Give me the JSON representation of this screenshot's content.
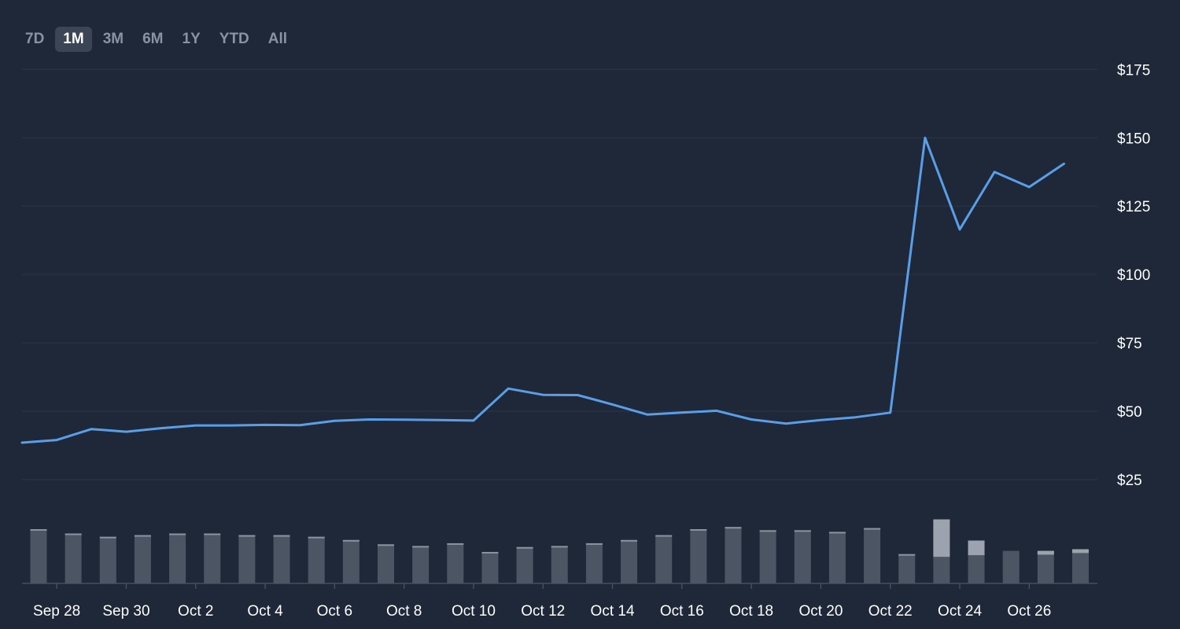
{
  "range_selector": {
    "options": [
      "7D",
      "1M",
      "3M",
      "6M",
      "1Y",
      "YTD",
      "All"
    ],
    "selected": "1M"
  },
  "colors": {
    "background": "#1e2838",
    "line": "#5b9ee8",
    "volume_bar": "#4b5563",
    "volume_bar_cap": "#9ca3af",
    "grid": "#2c3646",
    "axis": "#4a5566"
  },
  "chart_data": {
    "type": "line",
    "x": [
      "Sep 27",
      "Sep 28",
      "Sep 29",
      "Sep 30",
      "Oct 1",
      "Oct 2",
      "Oct 3",
      "Oct 4",
      "Oct 5",
      "Oct 6",
      "Oct 7",
      "Oct 8",
      "Oct 9",
      "Oct 10",
      "Oct 11",
      "Oct 12",
      "Oct 13",
      "Oct 14",
      "Oct 15",
      "Oct 16",
      "Oct 17",
      "Oct 18",
      "Oct 19",
      "Oct 20",
      "Oct 21",
      "Oct 22",
      "Oct 23",
      "Oct 24",
      "Oct 25",
      "Oct 26",
      "Oct 27"
    ],
    "series": [
      {
        "values": [
          38.5,
          39.5,
          43.5,
          42.5,
          43.8,
          44.8,
          44.8,
          45.0,
          44.9,
          46.5,
          47.0,
          46.9,
          46.8,
          46.6,
          58.3,
          56.0,
          55.9,
          52.5,
          48.8,
          49.5,
          50.2,
          47.0,
          45.5,
          46.8,
          47.8,
          49.5,
          150.0,
          116.5,
          137.5,
          132.0,
          140.5
        ]
      }
    ],
    "volume": [
      10,
      9.2,
      8.6,
      8.9,
      9.2,
      9.2,
      8.9,
      8.9,
      8.6,
      8.0,
      7.2,
      6.9,
      7.4,
      5.8,
      6.7,
      6.9,
      7.4,
      8.0,
      8.9,
      10.0,
      10.4,
      9.8,
      9.8,
      9.5,
      10.2,
      5.4,
      11.8,
      7.9,
      6.0,
      6.0,
      6.3
    ],
    "volume_highlight": [
      null,
      null,
      null,
      null,
      null,
      null,
      null,
      null,
      null,
      null,
      null,
      null,
      null,
      null,
      null,
      null,
      null,
      null,
      null,
      null,
      null,
      null,
      null,
      null,
      null,
      null,
      4.9,
      5.2,
      6.6,
      5.3,
      5.6
    ],
    "y_ticks": [
      "$25",
      "$50",
      "$75",
      "$100",
      "$125",
      "$150",
      "$175"
    ],
    "y_tick_values": [
      25,
      50,
      75,
      100,
      125,
      150,
      175
    ],
    "x_ticks": [
      "Sep 28",
      "Sep 30",
      "Oct 2",
      "Oct 4",
      "Oct 6",
      "Oct 8",
      "Oct 10",
      "Oct 12",
      "Oct 14",
      "Oct 16",
      "Oct 18",
      "Oct 20",
      "Oct 22",
      "Oct 24",
      "Oct 26"
    ],
    "y_axis_position": "right",
    "grid": true
  }
}
